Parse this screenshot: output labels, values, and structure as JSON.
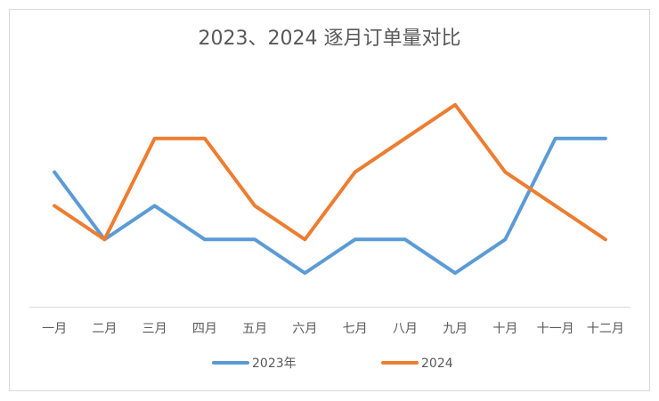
{
  "chart_data": {
    "type": "line",
    "title": "2023、2024 逐月订单量对比",
    "categories": [
      "一月",
      "二月",
      "三月",
      "四月",
      "五月",
      "六月",
      "七月",
      "八月",
      "九月",
      "十月",
      "十一月",
      "十二月"
    ],
    "series": [
      {
        "name": "2023年",
        "color": "#5b9bd5",
        "values": [
          4,
          2,
          3,
          2,
          2,
          1,
          2,
          2,
          1,
          2,
          5,
          5
        ]
      },
      {
        "name": "2024",
        "color": "#ed7d31",
        "values": [
          3,
          2,
          5,
          5,
          3,
          2,
          4,
          5,
          6,
          4,
          3,
          2
        ]
      }
    ],
    "ylim": [
      0,
      7
    ],
    "grid": false,
    "legend": "bottom"
  }
}
